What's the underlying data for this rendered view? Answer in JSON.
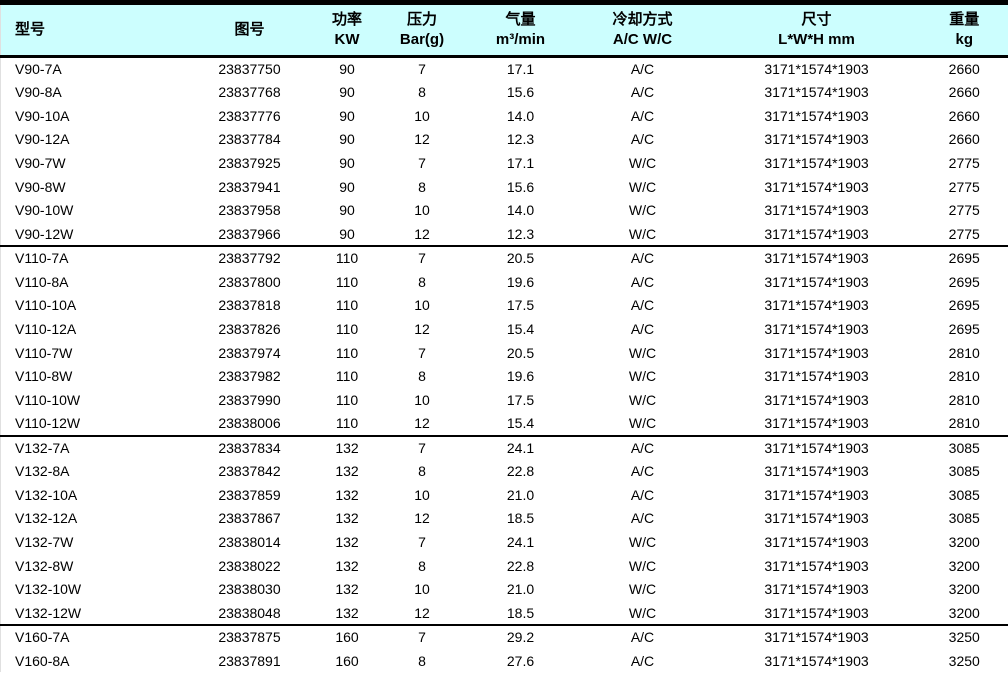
{
  "colors": {
    "header_bg": "#CCFEFE",
    "border_black": "#000000",
    "edge_gray": "#E0E0E0",
    "text": "#000000"
  },
  "table": {
    "columns": [
      {
        "name": "model",
        "line1": "型号",
        "line2": ""
      },
      {
        "name": "drawing-number",
        "line1": "图号",
        "line2": ""
      },
      {
        "name": "power",
        "line1": "功率",
        "line2": "KW"
      },
      {
        "name": "pressure",
        "line1": "压力",
        "line2": "Bar(g)"
      },
      {
        "name": "air-flow",
        "line1": "气量",
        "line2": "m³/min"
      },
      {
        "name": "cooling-type",
        "line1": "冷却方式",
        "line2": "A/C W/C"
      },
      {
        "name": "dimensions",
        "line1": "尺寸",
        "line2": "L*W*H mm"
      },
      {
        "name": "weight",
        "line1": "重量",
        "line2": "kg"
      }
    ],
    "groups": [
      {
        "rows": [
          [
            "V90-7A",
            "23837750",
            "90",
            "7",
            "17.1",
            "A/C",
            "3171*1574*1903",
            "2660"
          ],
          [
            "V90-8A",
            "23837768",
            "90",
            "8",
            "15.6",
            "A/C",
            "3171*1574*1903",
            "2660"
          ],
          [
            "V90-10A",
            "23837776",
            "90",
            "10",
            "14.0",
            "A/C",
            "3171*1574*1903",
            "2660"
          ],
          [
            "V90-12A",
            "23837784",
            "90",
            "12",
            "12.3",
            "A/C",
            "3171*1574*1903",
            "2660"
          ],
          [
            "V90-7W",
            "23837925",
            "90",
            "7",
            "17.1",
            "W/C",
            "3171*1574*1903",
            "2775"
          ],
          [
            "V90-8W",
            "23837941",
            "90",
            "8",
            "15.6",
            "W/C",
            "3171*1574*1903",
            "2775"
          ],
          [
            "V90-10W",
            "23837958",
            "90",
            "10",
            "14.0",
            "W/C",
            "3171*1574*1903",
            "2775"
          ],
          [
            "V90-12W",
            "23837966",
            "90",
            "12",
            "12.3",
            "W/C",
            "3171*1574*1903",
            "2775"
          ]
        ]
      },
      {
        "rows": [
          [
            "V110-7A",
            "23837792",
            "110",
            "7",
            "20.5",
            "A/C",
            "3171*1574*1903",
            "2695"
          ],
          [
            "V110-8A",
            "23837800",
            "110",
            "8",
            "19.6",
            "A/C",
            "3171*1574*1903",
            "2695"
          ],
          [
            "V110-10A",
            "23837818",
            "110",
            "10",
            "17.5",
            "A/C",
            "3171*1574*1903",
            "2695"
          ],
          [
            "V110-12A",
            "23837826",
            "110",
            "12",
            "15.4",
            "A/C",
            "3171*1574*1903",
            "2695"
          ],
          [
            "V110-7W",
            "23837974",
            "110",
            "7",
            "20.5",
            "W/C",
            "3171*1574*1903",
            "2810"
          ],
          [
            "V110-8W",
            "23837982",
            "110",
            "8",
            "19.6",
            "W/C",
            "3171*1574*1903",
            "2810"
          ],
          [
            "V110-10W",
            "23837990",
            "110",
            "10",
            "17.5",
            "W/C",
            "3171*1574*1903",
            "2810"
          ],
          [
            "V110-12W",
            "23838006",
            "110",
            "12",
            "15.4",
            "W/C",
            "3171*1574*1903",
            "2810"
          ]
        ]
      },
      {
        "rows": [
          [
            "V132-7A",
            "23837834",
            "132",
            "7",
            "24.1",
            "A/C",
            "3171*1574*1903",
            "3085"
          ],
          [
            "V132-8A",
            "23837842",
            "132",
            "8",
            "22.8",
            "A/C",
            "3171*1574*1903",
            "3085"
          ],
          [
            "V132-10A",
            "23837859",
            "132",
            "10",
            "21.0",
            "A/C",
            "3171*1574*1903",
            "3085"
          ],
          [
            "V132-12A",
            "23837867",
            "132",
            "12",
            "18.5",
            "A/C",
            "3171*1574*1903",
            "3085"
          ],
          [
            "V132-7W",
            "23838014",
            "132",
            "7",
            "24.1",
            "W/C",
            "3171*1574*1903",
            "3200"
          ],
          [
            "V132-8W",
            "23838022",
            "132",
            "8",
            "22.8",
            "W/C",
            "3171*1574*1903",
            "3200"
          ],
          [
            "V132-10W",
            "23838030",
            "132",
            "10",
            "21.0",
            "W/C",
            "3171*1574*1903",
            "3200"
          ],
          [
            "V132-12W",
            "23838048",
            "132",
            "12",
            "18.5",
            "W/C",
            "3171*1574*1903",
            "3200"
          ]
        ]
      },
      {
        "rows": [
          [
            "V160-7A",
            "23837875",
            "160",
            "7",
            "29.2",
            "A/C",
            "3171*1574*1903",
            "3250"
          ],
          [
            "V160-8A",
            "23837891",
            "160",
            "8",
            "27.6",
            "A/C",
            "3171*1574*1903",
            "3250"
          ]
        ]
      }
    ]
  }
}
